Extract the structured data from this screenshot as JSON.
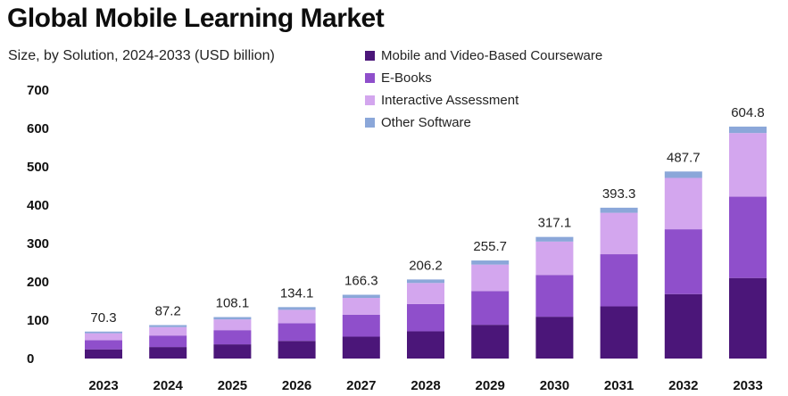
{
  "chart_data": {
    "type": "bar",
    "stacked": true,
    "title": "Global Mobile Learning Market",
    "subtitle": "Size, by Solution, 2024-2033 (USD billion)",
    "categories": [
      "2023",
      "2024",
      "2025",
      "2026",
      "2027",
      "2028",
      "2029",
      "2030",
      "2031",
      "2032",
      "2033"
    ],
    "totals": [
      "70.3",
      "87.2",
      "108.1",
      "134.1",
      "166.3",
      "206.2",
      "255.7",
      "317.1",
      "393.3",
      "487.7",
      "604.8"
    ],
    "series": [
      {
        "name": "Mobile and Video-Based Courseware",
        "color": "#4b1679",
        "values": [
          24,
          30,
          37,
          46,
          57,
          71,
          88,
          109,
          136,
          168,
          210
        ]
      },
      {
        "name": "E-Books",
        "color": "#8f4fcb",
        "values": [
          24,
          30,
          37,
          46,
          57,
          71,
          88,
          109,
          136,
          169,
          212
        ]
      },
      {
        "name": "Interactive Assessment",
        "color": "#d3a6ee",
        "values": [
          18,
          22,
          28,
          35,
          44,
          55,
          69,
          87,
          108,
          134,
          166
        ]
      },
      {
        "name": "Other Software",
        "color": "#8ba7d9",
        "values": [
          4.3,
          5.2,
          6.1,
          7.1,
          8.3,
          9.2,
          10.7,
          12.1,
          13.3,
          16.7,
          16.8
        ]
      }
    ],
    "yticks": [
      "0",
      "100",
      "200",
      "300",
      "400",
      "500",
      "600",
      "700"
    ],
    "ylim": [
      0,
      700
    ],
    "grid": false,
    "legend_position": "top-center"
  }
}
